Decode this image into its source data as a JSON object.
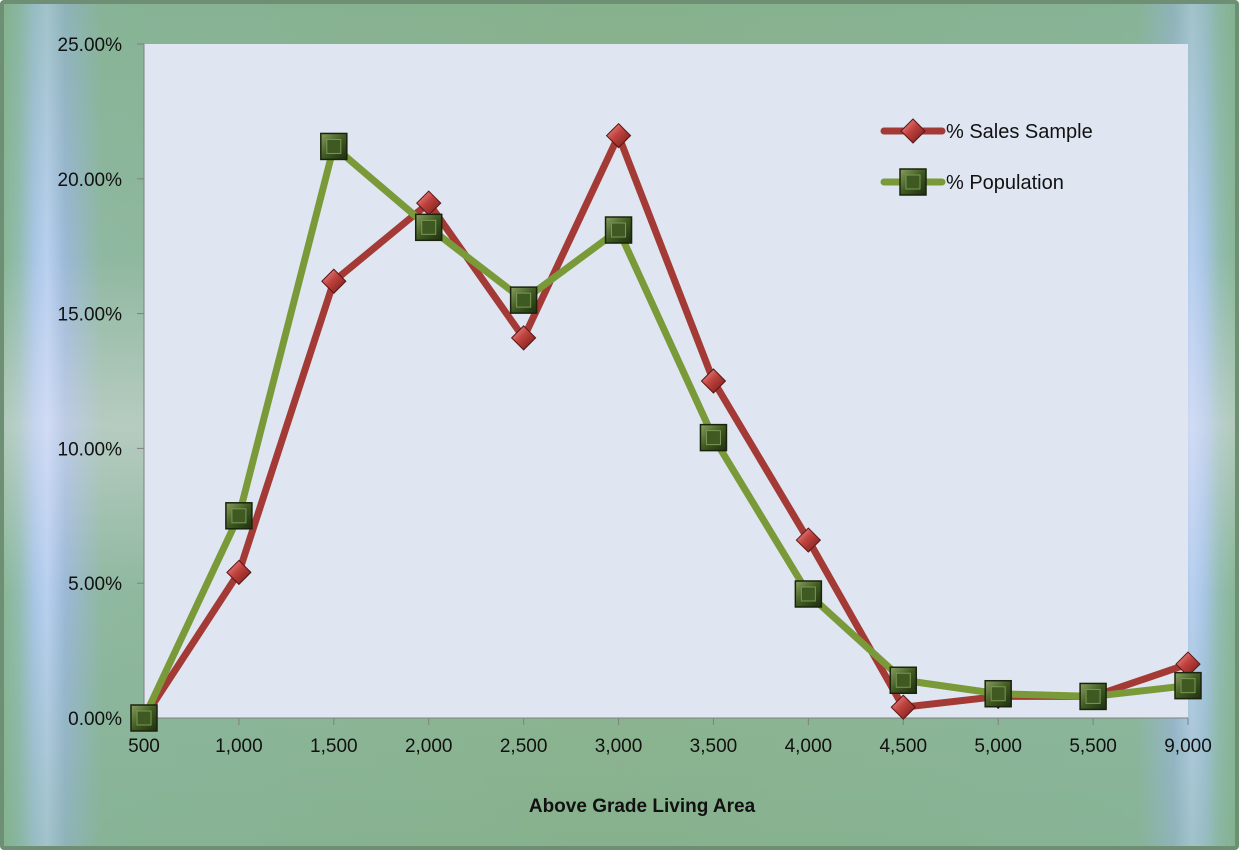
{
  "chart_data": {
    "type": "line",
    "title": "",
    "xlabel": "Above Grade Living Area",
    "ylabel": "",
    "categories": [
      "500",
      "1,000",
      "1,500",
      "2,000",
      "2,500",
      "3,000",
      "3,500",
      "4,000",
      "4,500",
      "5,000",
      "5,500",
      "9,000"
    ],
    "ylim": [
      0,
      0.25
    ],
    "yticks": [
      "0.00%",
      "5.00%",
      "10.00%",
      "15.00%",
      "20.00%",
      "25.00%"
    ],
    "grid": false,
    "legend_position": "top-right",
    "series": [
      {
        "name": "% Sales Sample",
        "color": "#a33a36",
        "marker": "diamond",
        "values": [
          0.0,
          0.054,
          0.162,
          0.191,
          0.141,
          0.216,
          0.125,
          0.066,
          0.004,
          0.008,
          0.008,
          0.02
        ]
      },
      {
        "name": "% Population",
        "color": "#7a9a3a",
        "marker": "square",
        "values": [
          0.0,
          0.075,
          0.212,
          0.182,
          0.155,
          0.181,
          0.104,
          0.046,
          0.014,
          0.009,
          0.008,
          0.012
        ]
      }
    ]
  }
}
